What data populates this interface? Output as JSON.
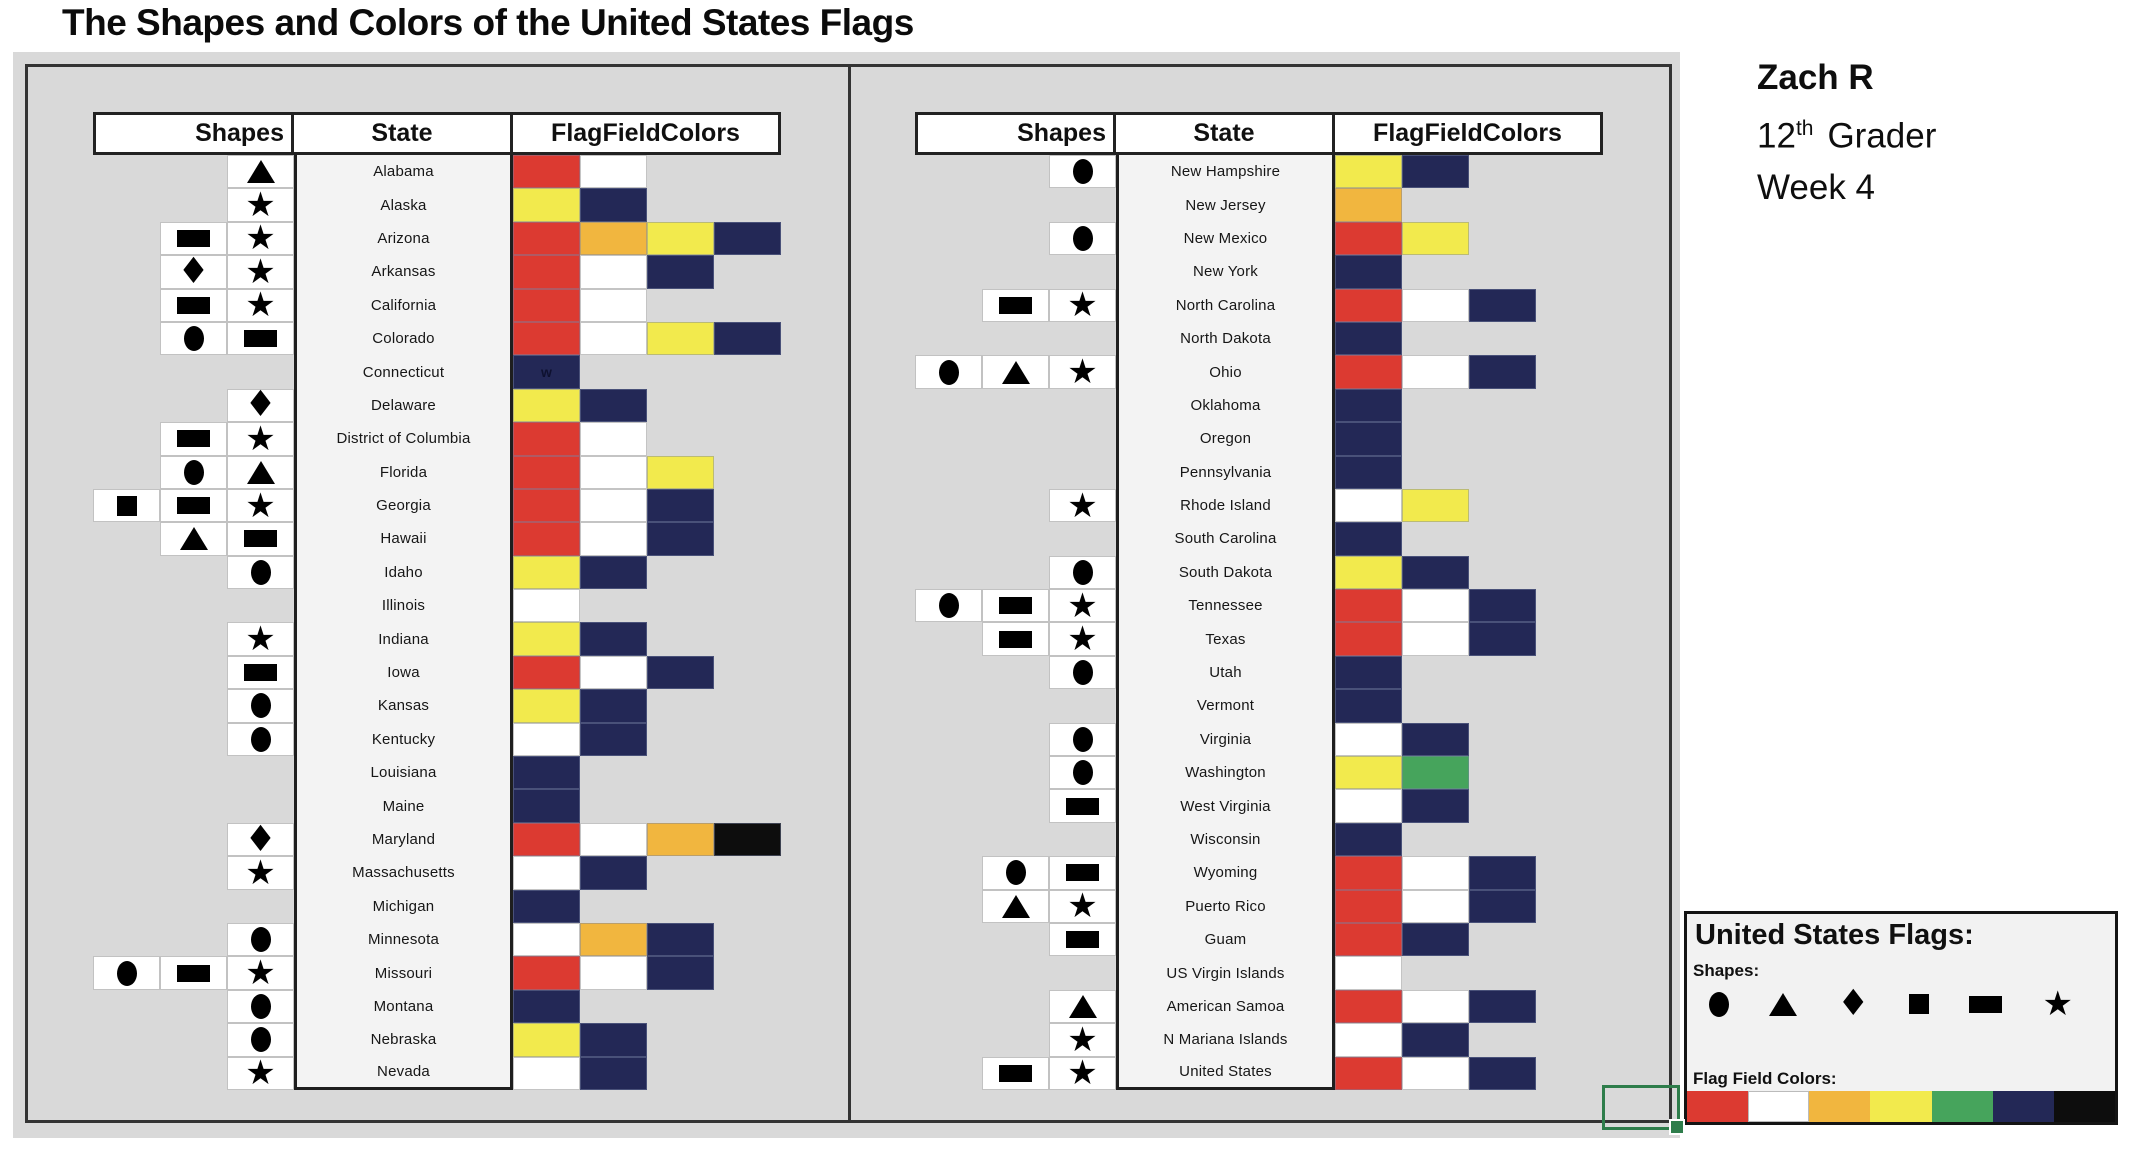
{
  "title": "The Shapes and Colors of the United States Flags",
  "annotation": {
    "name": "Zach R",
    "grade_number": "12",
    "grade_sup": "th",
    "grade_word": "Grader",
    "week": "Week 4"
  },
  "palette": {
    "red": "#dc3a31",
    "white": "#ffffff",
    "orange": "#f1b63f",
    "yellow": "#f2ea4d",
    "green": "#46a45c",
    "navy": "#232856",
    "black": "#0d0d0d"
  },
  "chart_data": {
    "type": "table",
    "title": "The Shapes and Colors of the United States Flags",
    "headers": {
      "shapes": "Shapes",
      "state": "State",
      "flag_colors": "FlagFieldColors"
    },
    "left_rows": [
      {
        "state": "Alabama",
        "shapes": [
          "triangle"
        ],
        "colors": [
          "red",
          "white"
        ]
      },
      {
        "state": "Alaska",
        "shapes": [
          "star"
        ],
        "colors": [
          "yellow",
          "navy"
        ]
      },
      {
        "state": "Arizona",
        "shapes": [
          "rectangle",
          "star"
        ],
        "colors": [
          "red",
          "orange",
          "yellow",
          "navy"
        ]
      },
      {
        "state": "Arkansas",
        "shapes": [
          "diamond",
          "star"
        ],
        "colors": [
          "red",
          "white",
          "navy"
        ]
      },
      {
        "state": "California",
        "shapes": [
          "rectangle",
          "star"
        ],
        "colors": [
          "red",
          "white"
        ]
      },
      {
        "state": "Colorado",
        "shapes": [
          "circle",
          "rectangle"
        ],
        "colors": [
          "red",
          "white",
          "yellow",
          "navy"
        ]
      },
      {
        "state": "Connecticut",
        "shapes": [],
        "colors": [
          "navy"
        ],
        "cell_text": "w"
      },
      {
        "state": "Delaware",
        "shapes": [
          "diamond"
        ],
        "colors": [
          "yellow",
          "navy"
        ]
      },
      {
        "state": "District of Columbia",
        "shapes": [
          "rectangle",
          "star"
        ],
        "colors": [
          "red",
          "white"
        ]
      },
      {
        "state": "Florida",
        "shapes": [
          "circle",
          "triangle"
        ],
        "colors": [
          "red",
          "white",
          "yellow"
        ]
      },
      {
        "state": "Georgia",
        "shapes": [
          "square",
          "rectangle",
          "star"
        ],
        "colors": [
          "red",
          "white",
          "navy"
        ]
      },
      {
        "state": "Hawaii",
        "shapes": [
          "triangle",
          "rectangle"
        ],
        "colors": [
          "red",
          "white",
          "navy"
        ]
      },
      {
        "state": "Idaho",
        "shapes": [
          "circle"
        ],
        "colors": [
          "yellow",
          "navy"
        ]
      },
      {
        "state": "Illinois",
        "shapes": [],
        "colors": [
          "white"
        ]
      },
      {
        "state": "Indiana",
        "shapes": [
          "star"
        ],
        "colors": [
          "yellow",
          "navy"
        ]
      },
      {
        "state": "Iowa",
        "shapes": [
          "rectangle"
        ],
        "colors": [
          "red",
          "white",
          "navy"
        ]
      },
      {
        "state": "Kansas",
        "shapes": [
          "circle"
        ],
        "colors": [
          "yellow",
          "navy"
        ]
      },
      {
        "state": "Kentucky",
        "shapes": [
          "circle"
        ],
        "colors": [
          "white",
          "navy"
        ]
      },
      {
        "state": "Louisiana",
        "shapes": [],
        "colors": [
          "navy"
        ]
      },
      {
        "state": "Maine",
        "shapes": [],
        "colors": [
          "navy"
        ]
      },
      {
        "state": "Maryland",
        "shapes": [
          "diamond"
        ],
        "colors": [
          "red",
          "white",
          "orange",
          "black"
        ]
      },
      {
        "state": "Massachusetts",
        "shapes": [
          "star"
        ],
        "colors": [
          "white",
          "navy"
        ]
      },
      {
        "state": "Michigan",
        "shapes": [],
        "colors": [
          "navy"
        ]
      },
      {
        "state": "Minnesota",
        "shapes": [
          "circle"
        ],
        "colors": [
          "white",
          "orange",
          "navy"
        ]
      },
      {
        "state": "Missouri",
        "shapes": [
          "circle",
          "rectangle",
          "star"
        ],
        "colors": [
          "red",
          "white",
          "navy"
        ]
      },
      {
        "state": "Montana",
        "shapes": [
          "circle"
        ],
        "colors": [
          "navy"
        ]
      },
      {
        "state": "Nebraska",
        "shapes": [
          "circle"
        ],
        "colors": [
          "yellow",
          "navy"
        ]
      },
      {
        "state": "Nevada",
        "shapes": [
          "star"
        ],
        "colors": [
          "white",
          "navy"
        ]
      }
    ],
    "right_rows": [
      {
        "state": "New Hampshire",
        "shapes": [
          "circle"
        ],
        "colors": [
          "yellow",
          "navy"
        ]
      },
      {
        "state": "New Jersey",
        "shapes": [],
        "colors": [
          "orange"
        ]
      },
      {
        "state": "New Mexico",
        "shapes": [
          "circle"
        ],
        "colors": [
          "red",
          "yellow"
        ]
      },
      {
        "state": "New York",
        "shapes": [],
        "colors": [
          "navy"
        ]
      },
      {
        "state": "North Carolina",
        "shapes": [
          "rectangle",
          "star"
        ],
        "colors": [
          "red",
          "white",
          "navy"
        ]
      },
      {
        "state": "North Dakota",
        "shapes": [],
        "colors": [
          "navy"
        ]
      },
      {
        "state": "Ohio",
        "shapes": [
          "circle",
          "triangle",
          "star"
        ],
        "colors": [
          "red",
          "white",
          "navy"
        ]
      },
      {
        "state": "Oklahoma",
        "shapes": [],
        "colors": [
          "navy"
        ]
      },
      {
        "state": "Oregon",
        "shapes": [],
        "colors": [
          "navy"
        ]
      },
      {
        "state": "Pennsylvania",
        "shapes": [],
        "colors": [
          "navy"
        ]
      },
      {
        "state": "Rhode Island",
        "shapes": [
          "star"
        ],
        "colors": [
          "white",
          "yellow"
        ]
      },
      {
        "state": "South Carolina",
        "shapes": [],
        "colors": [
          "navy"
        ]
      },
      {
        "state": "South Dakota",
        "shapes": [
          "circle"
        ],
        "colors": [
          "yellow",
          "navy"
        ]
      },
      {
        "state": "Tennessee",
        "shapes": [
          "circle",
          "rectangle",
          "star"
        ],
        "colors": [
          "red",
          "white",
          "navy"
        ]
      },
      {
        "state": "Texas",
        "shapes": [
          "rectangle",
          "star"
        ],
        "colors": [
          "red",
          "white",
          "navy"
        ]
      },
      {
        "state": "Utah",
        "shapes": [
          "circle"
        ],
        "colors": [
          "navy"
        ]
      },
      {
        "state": "Vermont",
        "shapes": [],
        "colors": [
          "navy"
        ]
      },
      {
        "state": "Virginia",
        "shapes": [
          "circle"
        ],
        "colors": [
          "white",
          "navy"
        ]
      },
      {
        "state": "Washington",
        "shapes": [
          "circle"
        ],
        "colors": [
          "yellow",
          "green"
        ]
      },
      {
        "state": "West Virginia",
        "shapes": [
          "rectangle"
        ],
        "colors": [
          "white",
          "navy"
        ]
      },
      {
        "state": "Wisconsin",
        "shapes": [],
        "colors": [
          "navy"
        ]
      },
      {
        "state": "Wyoming",
        "shapes": [
          "circle",
          "rectangle"
        ],
        "colors": [
          "red",
          "white",
          "navy"
        ]
      },
      {
        "state": "Puerto Rico",
        "shapes": [
          "triangle",
          "star"
        ],
        "colors": [
          "red",
          "white",
          "navy"
        ]
      },
      {
        "state": "Guam",
        "shapes": [
          "rectangle"
        ],
        "colors": [
          "red",
          "navy"
        ]
      },
      {
        "state": "US Virgin Islands",
        "shapes": [],
        "colors": [
          "white"
        ]
      },
      {
        "state": "American Samoa",
        "shapes": [
          "triangle"
        ],
        "colors": [
          "red",
          "white",
          "navy"
        ]
      },
      {
        "state": "N Mariana Islands",
        "shapes": [
          "star"
        ],
        "colors": [
          "white",
          "navy"
        ]
      },
      {
        "state": "United States",
        "shapes": [
          "rectangle",
          "star"
        ],
        "colors": [
          "red",
          "white",
          "navy"
        ]
      }
    ]
  },
  "legend": {
    "title": "United States Flags:",
    "shapes_label": "Shapes:",
    "colors_label": "Flag Field Colors:",
    "shapes": [
      "circle",
      "triangle",
      "diamond",
      "square",
      "rectangle",
      "star"
    ],
    "colors": [
      "red",
      "white",
      "orange",
      "yellow",
      "green",
      "navy",
      "black"
    ]
  }
}
